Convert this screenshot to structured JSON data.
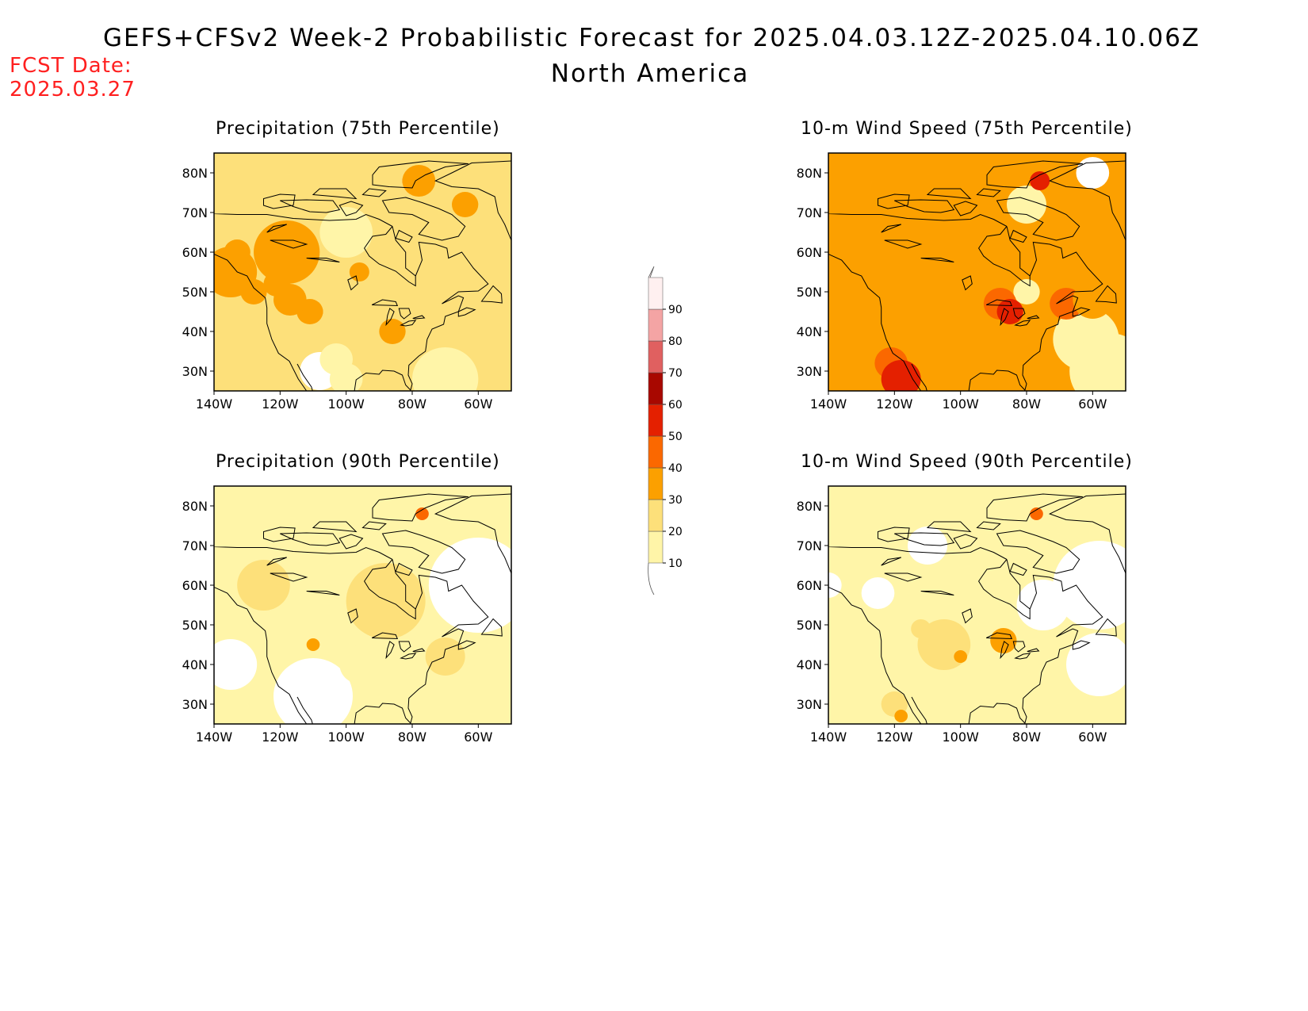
{
  "header": {
    "title": "GEFS+CFSv2 Week-2 Probabilistic Forecast for 2025.04.03.12Z-2025.04.10.06Z",
    "subtitle": "North America",
    "fcst_label": "FCST Date:",
    "fcst_date": "2025.03.27"
  },
  "colors": {
    "levels": [
      "#ffffff",
      "#fff5a8",
      "#fde07a",
      "#fca000",
      "#fb6800",
      "#e42000",
      "#a80800",
      "#e06060",
      "#f4a4a4",
      "#fff0f0"
    ],
    "coastline": "#000000"
  },
  "colorbar": {
    "labels": [
      "10",
      "20",
      "30",
      "40",
      "50",
      "60",
      "70",
      "80",
      "90"
    ]
  },
  "axes": {
    "lon_ticks": [
      "140W",
      "120W",
      "100W",
      "80W",
      "60W"
    ],
    "lat_ticks": [
      "30N",
      "40N",
      "50N",
      "60N",
      "70N",
      "80N"
    ]
  },
  "panels": [
    {
      "id": "precip75",
      "title": "Precipitation (75th Percentile)",
      "base_level": 2
    },
    {
      "id": "wind75",
      "title": "10-m Wind Speed (75th Percentile)",
      "base_level": 3
    },
    {
      "id": "precip90",
      "title": "Precipitation (90th Percentile)",
      "base_level": 1
    },
    {
      "id": "wind90",
      "title": "10-m Wind Speed (90th Percentile)",
      "base_level": 1
    }
  ]
}
